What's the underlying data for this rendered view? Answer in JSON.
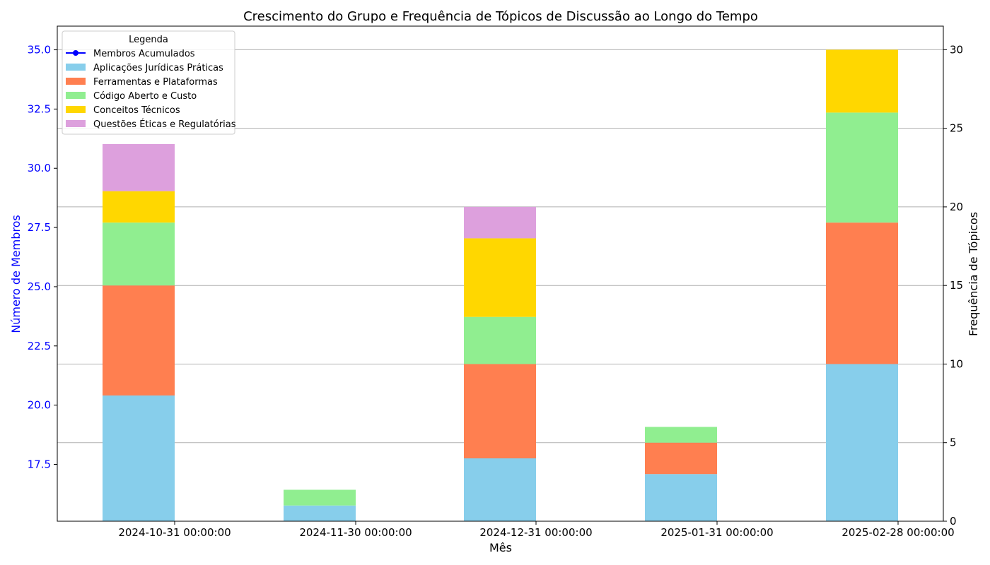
{
  "chart_data": {
    "type": "bar",
    "title": "Crescimento do Grupo e Frequência de Tópicos de Discussão ao Longo do Tempo",
    "xlabel": "Mês",
    "ylabel_left": "Número de Membros",
    "ylabel_right": "Frequência de Tópicos",
    "categories": [
      "2024-10-31 00:00:00",
      "2024-11-30 00:00:00",
      "2024-12-31 00:00:00",
      "2025-01-31 00:00:00",
      "2025-02-28 00:00:00"
    ],
    "left_axis": {
      "ylim": [
        15.1,
        36.0
      ],
      "ticks": [
        "17.5",
        "20.0",
        "22.5",
        "25.0",
        "27.5",
        "30.0",
        "32.5",
        "35.0"
      ],
      "tick_values": [
        17.5,
        20.0,
        22.5,
        25.0,
        27.5,
        30.0,
        32.5,
        35.0
      ],
      "color": "#0000ff"
    },
    "right_axis": {
      "ylim": [
        0,
        31.5
      ],
      "ticks": [
        "0",
        "5",
        "10",
        "15",
        "20",
        "25",
        "30"
      ],
      "tick_values": [
        0,
        5,
        10,
        15,
        20,
        25,
        30
      ]
    },
    "grid": "horizontal, right axis",
    "legend": {
      "title": "Legenda",
      "placement": "top-left",
      "line_entry": {
        "name": "Membros Acumulados",
        "color": "#0000ff"
      }
    },
    "series": [
      {
        "name": "Aplicações Jurídicas Práticas",
        "color": "#87ceeb",
        "values": [
          8,
          1,
          4,
          3,
          10
        ]
      },
      {
        "name": "Ferramentas e Plataformas",
        "color": "#ff7f50",
        "values": [
          7,
          0,
          6,
          2,
          9
        ]
      },
      {
        "name": "Código Aberto e Custo",
        "color": "#90ee90",
        "values": [
          4,
          1,
          3,
          1,
          7
        ]
      },
      {
        "name": "Conceitos Técnicos",
        "color": "#ffd700",
        "values": [
          2,
          0,
          5,
          0,
          4
        ]
      },
      {
        "name": "Questões Éticas e Regulatórias",
        "color": "#dda0dd",
        "values": [
          3,
          0,
          2,
          0,
          0
        ]
      }
    ]
  }
}
